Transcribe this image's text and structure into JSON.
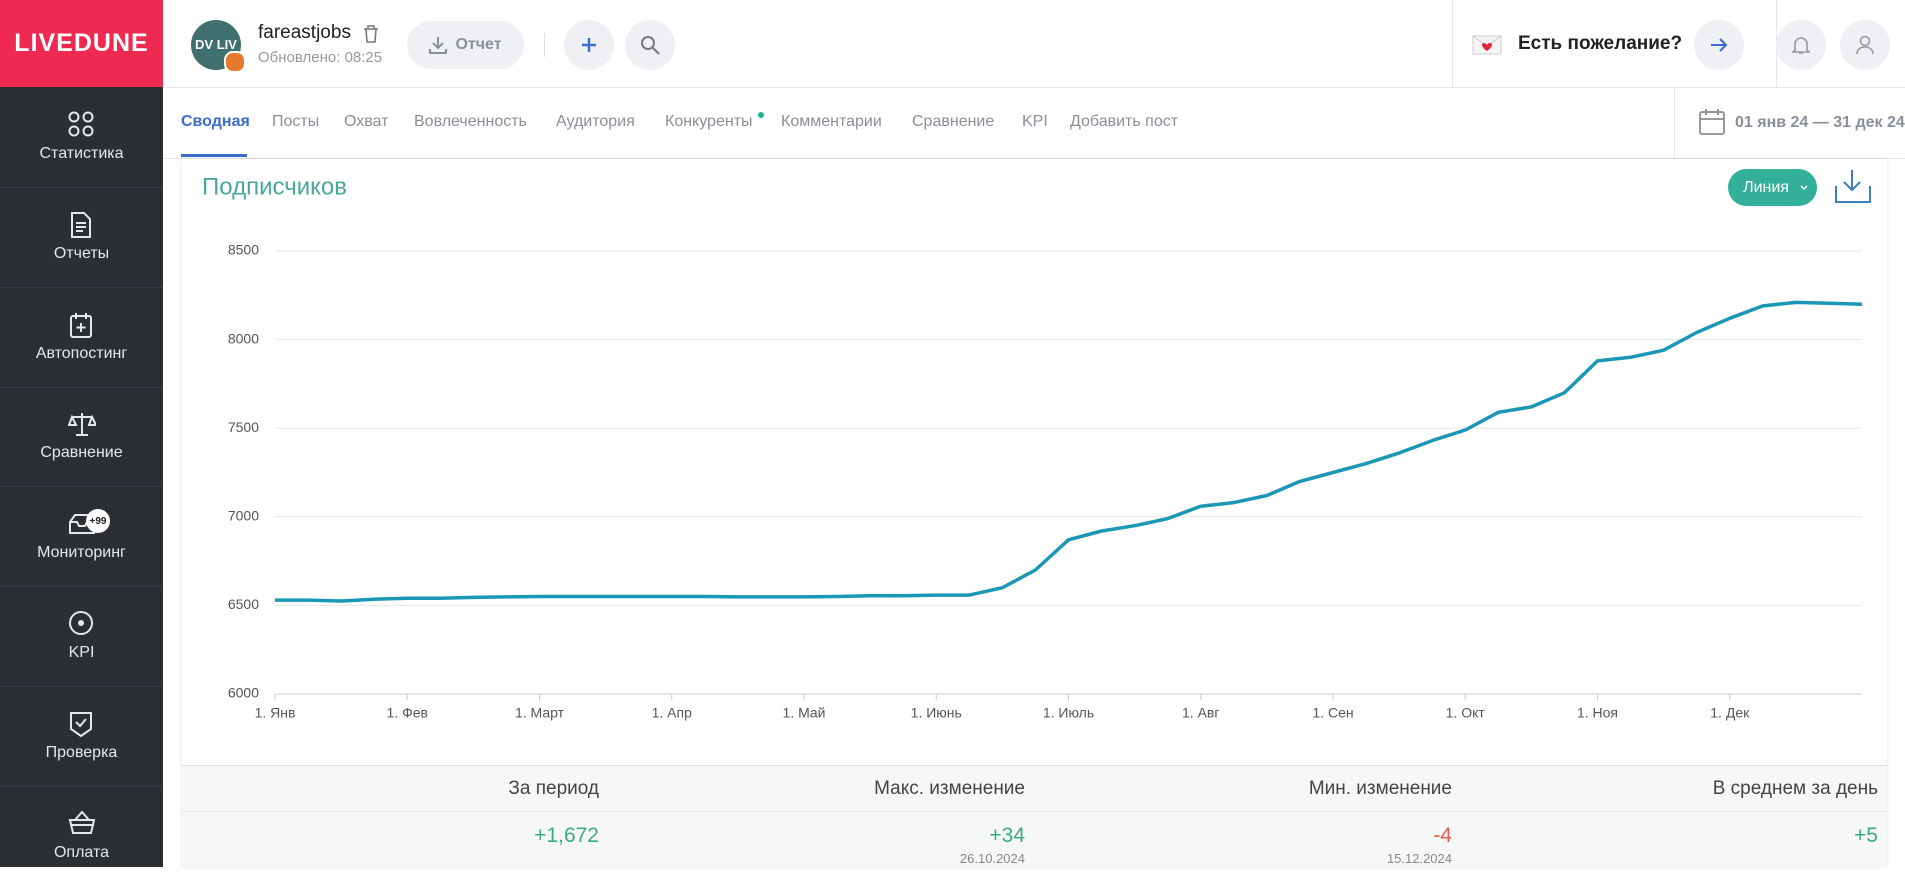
{
  "sidebar": {
    "logo": "LIVEDUNE",
    "items": [
      "Статистика",
      "Отчеты",
      "Автопостинг",
      "Сравнение",
      "Мониторинг",
      "KPI",
      "Проверка",
      "Оплата"
    ],
    "monitoring_badge": "+99"
  },
  "header": {
    "avatar_text": "DV LIV",
    "account": "fareastjobs",
    "updated": "Обновлено: 08:25",
    "report_button": "Отчет",
    "wish": "Есть пожелание?"
  },
  "tabs": {
    "items": [
      "Сводная",
      "Посты",
      "Охват",
      "Вовлеченность",
      "Аудитория",
      "Конкуренты",
      "Комментарии",
      "Сравнение",
      "KPI",
      "Добавить пост"
    ],
    "active": 0,
    "date_range": "01 янв 24 — 31 дек 24"
  },
  "chart_controls": {
    "style_button": "Линия"
  },
  "chart_data": {
    "type": "line",
    "title": "Подписчиков",
    "categories": [
      "1. Янв",
      null,
      null,
      null,
      "1. Фев",
      null,
      null,
      null,
      "1. Март",
      null,
      null,
      null,
      "1. Апр",
      null,
      null,
      null,
      "1. Май",
      null,
      null,
      null,
      "1. Июнь",
      null,
      null,
      null,
      "1. Июль",
      null,
      null,
      null,
      "1. Авг",
      null,
      null,
      null,
      "1. Сен",
      null,
      null,
      null,
      "1. Окт",
      null,
      null,
      null,
      "1. Ноя",
      null,
      null,
      null,
      "1. Дек",
      null,
      null,
      null,
      null
    ],
    "values": [
      6530,
      6530,
      6525,
      6535,
      6540,
      6540,
      6545,
      6548,
      6550,
      6550,
      6550,
      6550,
      6550,
      6550,
      6548,
      6548,
      6548,
      6550,
      6555,
      6555,
      6558,
      6558,
      6600,
      6700,
      6870,
      6920,
      6950,
      6990,
      7060,
      7080,
      7120,
      7200,
      7250,
      7300,
      7360,
      7430,
      7490,
      7590,
      7620,
      7700,
      7880,
      7900,
      7940,
      8040,
      8120,
      8190,
      8210,
      8205,
      8200
    ],
    "color": "#1a97b5",
    "ylim": [
      6000,
      8500
    ],
    "yticks": [
      6000,
      6500,
      7000,
      7500,
      8000,
      8500
    ],
    "grid": true
  },
  "stats": {
    "headers": [
      "За период",
      "Макс. изменение",
      "Мин. изменение",
      "В среднем за день"
    ],
    "values": [
      "+1,672",
      "+34",
      "-4",
      "+5"
    ],
    "dates": [
      null,
      "26.10.2024",
      "15.12.2024",
      null
    ]
  }
}
